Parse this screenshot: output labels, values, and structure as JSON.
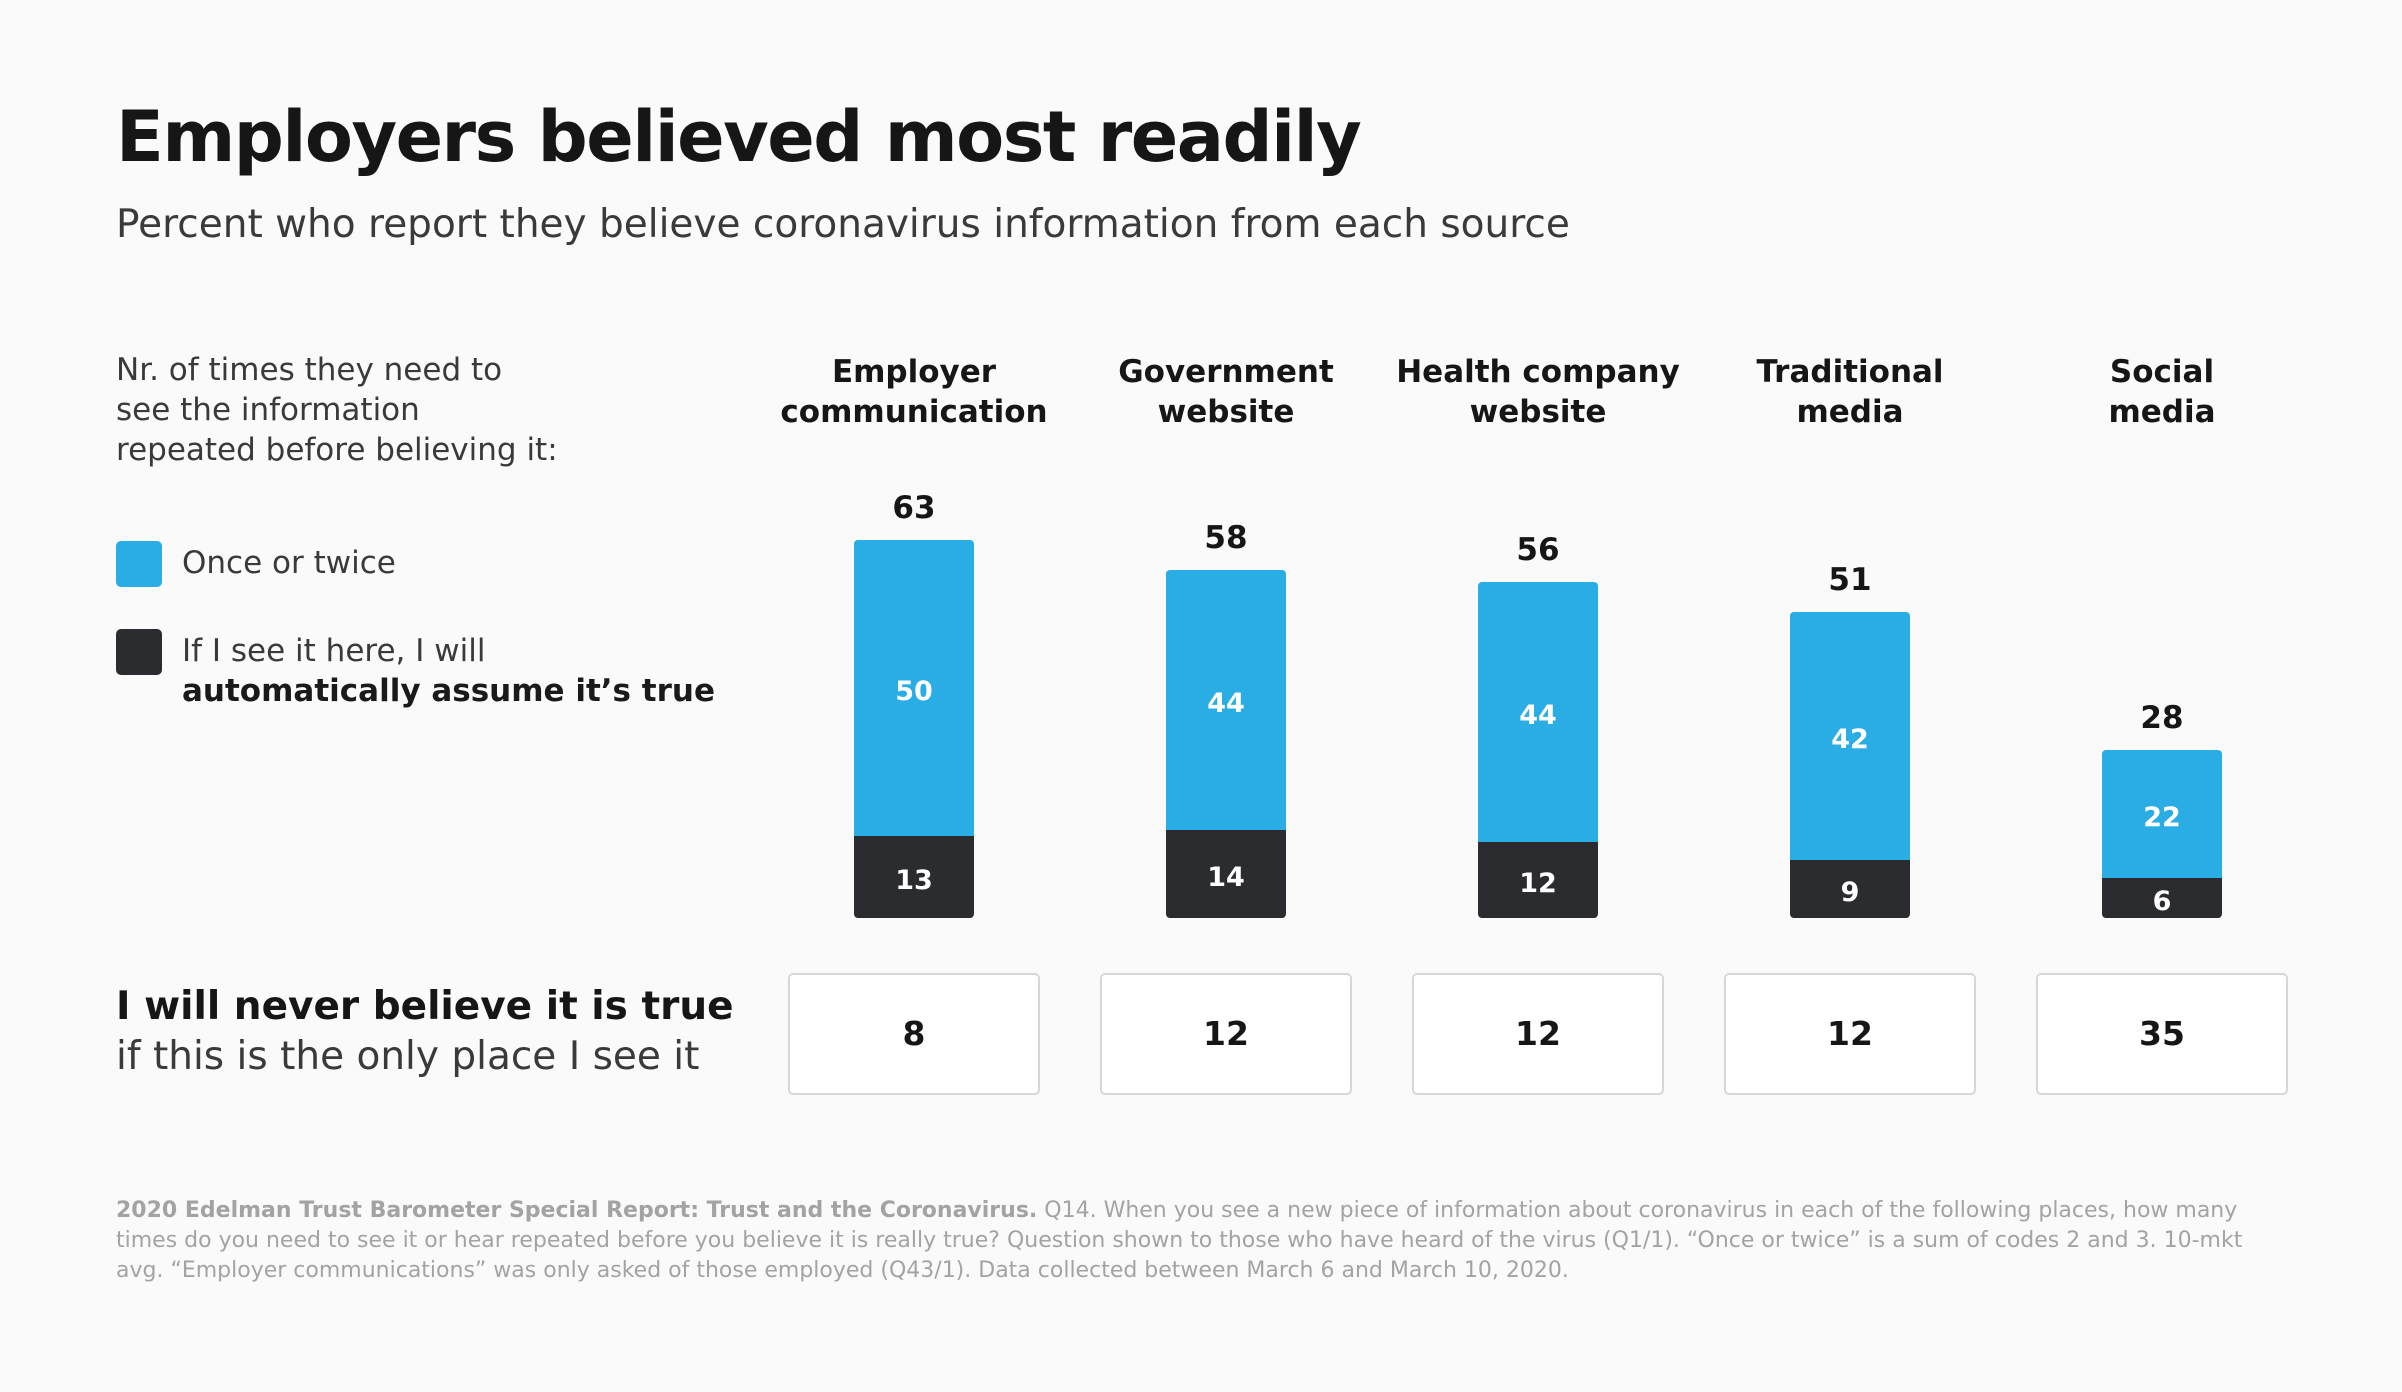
{
  "title": "Employers believed most readily",
  "subtitle": "Percent who report they believe coronavirus information from each source",
  "legend": {
    "intro_lines": [
      "Nr. of times they need to",
      "see the information",
      "repeated before believing it:"
    ],
    "once": {
      "label": "Once or twice",
      "color": "#2aace4"
    },
    "auto": {
      "label_line1": "If I see it here, I will",
      "label_line2": "automatically assume it’s true",
      "color": "#2b2c30"
    }
  },
  "never": {
    "line1": "I will never believe it is true",
    "line2": "if this is the only place I see it"
  },
  "footnote": {
    "source": "2020 Edelman Trust Barometer Special Report: Trust and the Coronavirus.",
    "text": " Q14. When you see a new piece of information about coronavirus in each of the following places, how many times do you need to see it or hear repeated before you believe it is really true? Question shown to those who have heard of the virus (Q1/1). “Once or twice” is a sum of codes 2 and 3. 10-mkt avg. “Employer communications” was only asked of those employed (Q43/1). Data collected between March 6 and March 10, 2020."
  },
  "chart_data": {
    "type": "bar",
    "stacked": true,
    "categories": [
      [
        "Employer",
        "communication"
      ],
      [
        "Government",
        "website"
      ],
      [
        "Health company",
        "website"
      ],
      [
        "Traditional",
        "media"
      ],
      [
        "Social",
        "media"
      ]
    ],
    "totals": [
      63,
      58,
      56,
      51,
      28
    ],
    "series": [
      {
        "name": "If I see it here, I will automatically assume it’s true",
        "color": "#2b2c30",
        "values": [
          13,
          14,
          12,
          9,
          6
        ]
      },
      {
        "name": "Once or twice",
        "color": "#2aace4",
        "values": [
          50,
          44,
          44,
          42,
          22
        ]
      }
    ],
    "never_values": [
      8,
      12,
      12,
      12,
      35
    ],
    "ylim": [
      0,
      63
    ]
  }
}
